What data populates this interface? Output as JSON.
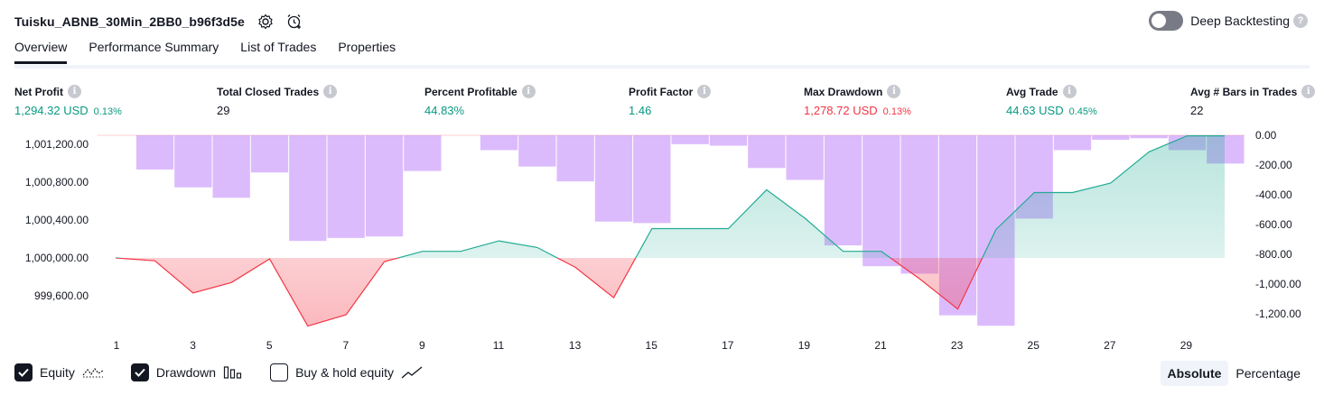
{
  "header": {
    "title": "Tuisku_ABNB_30Min_2BB0_b96f3d5e",
    "deep_backtesting_label": "Deep Backtesting",
    "help_glyph": "?"
  },
  "tabs": [
    "Overview",
    "Performance Summary",
    "List of Trades",
    "Properties"
  ],
  "metrics": [
    {
      "label": "Net Profit",
      "value": "1,294.32 USD",
      "pct": "0.13%",
      "color": "green"
    },
    {
      "label": "Total Closed Trades",
      "value": "29",
      "pct": "",
      "color": "dark"
    },
    {
      "label": "Percent Profitable",
      "value": "44.83%",
      "pct": "",
      "color": "green"
    },
    {
      "label": "Profit Factor",
      "value": "1.46",
      "pct": "",
      "color": "green"
    },
    {
      "label": "Max Drawdown",
      "value": "1,278.72 USD",
      "pct": "0.13%",
      "color": "red"
    },
    {
      "label": "Avg Trade",
      "value": "44.63 USD",
      "pct": "0.45%",
      "color": "green"
    },
    {
      "label": "Avg # Bars in Trades",
      "value": "22",
      "pct": "",
      "color": "dark"
    }
  ],
  "info_glyph": "i",
  "chart_data": {
    "type": "line+bar",
    "x_ticks": [
      "1",
      "3",
      "5",
      "7",
      "9",
      "11",
      "13",
      "15",
      "17",
      "19",
      "21",
      "23",
      "25",
      "27",
      "29"
    ],
    "equity": {
      "name": "Equity",
      "baseline": 1000000,
      "x": [
        1,
        2,
        3,
        4,
        5,
        6,
        7,
        8,
        9,
        10,
        11,
        12,
        13,
        14,
        15,
        16,
        17,
        18,
        19,
        20,
        21,
        22,
        23,
        24,
        25,
        26,
        27,
        28,
        29,
        30
      ],
      "values": [
        1000000,
        999970,
        999630,
        999740,
        999990,
        999280,
        999400,
        999960,
        1000070,
        1000070,
        1000180,
        1000110,
        999900,
        999580,
        1000310,
        1000310,
        1000310,
        1000720,
        1000420,
        1000070,
        1000070,
        999780,
        999460,
        1000300,
        1000690,
        1000690,
        1000790,
        1001120,
        1001290,
        1001290
      ],
      "left_axis_ticks": [
        "1,001,200.00",
        "1,000,800.00",
        "1,000,400.00",
        "1,000,000.00",
        "999,600.00"
      ],
      "left_axis_values": [
        1001200,
        1000800,
        1000400,
        1000000,
        999600
      ]
    },
    "drawdown": {
      "name": "Drawdown",
      "x": [
        1,
        2,
        3,
        4,
        5,
        6,
        7,
        8,
        9,
        10,
        11,
        12,
        13,
        14,
        15,
        16,
        17,
        18,
        19,
        20,
        21,
        22,
        23,
        24,
        25,
        26,
        27,
        28,
        29,
        30
      ],
      "values": [
        0,
        -230,
        -350,
        -420,
        -250,
        -710,
        -690,
        -680,
        -240,
        0,
        -100,
        -210,
        -310,
        -580,
        -590,
        -60,
        -70,
        -220,
        -300,
        -740,
        -880,
        -930,
        -1210,
        -1280,
        -560,
        -100,
        -30,
        -20,
        -100,
        -190
      ],
      "right_axis_ticks": [
        "0.00",
        "-200.00",
        "-400.00",
        "-600.00",
        "-800.00",
        "-1,000.00",
        "-1,200.00"
      ],
      "right_axis_values": [
        0,
        -200,
        -400,
        -600,
        -800,
        -1000,
        -1200
      ]
    },
    "colors": {
      "equity_up": "#22ab94",
      "equity_down": "#f23645",
      "drawdown_bar": "#c084fc"
    }
  },
  "legend": {
    "equity": "Equity",
    "drawdown": "Drawdown",
    "buy_hold": "Buy & hold equity",
    "equity_checked": true,
    "drawdown_checked": true,
    "buy_hold_checked": false
  },
  "modes": {
    "absolute": "Absolute",
    "percentage": "Percentage",
    "active": "Absolute"
  }
}
